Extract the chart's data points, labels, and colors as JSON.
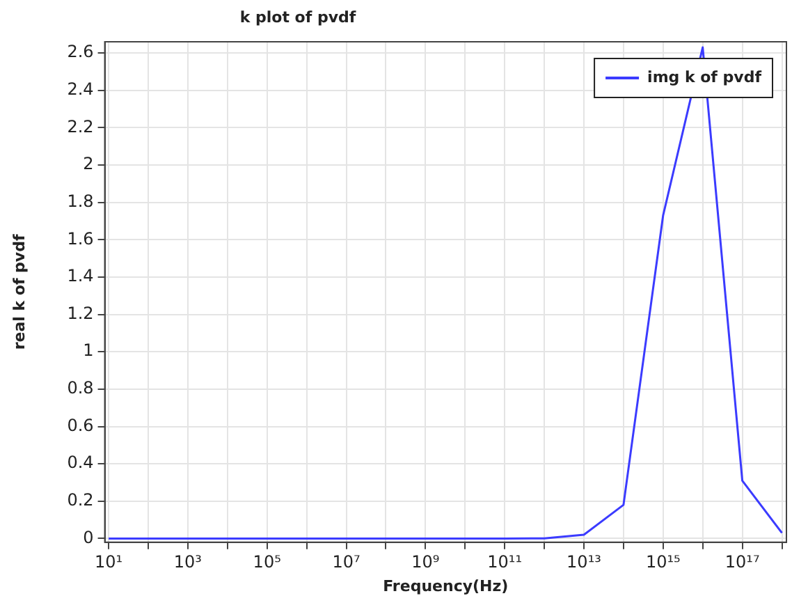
{
  "chart_data": {
    "type": "line",
    "title": "k plot of pvdf",
    "xlabel": "Frequency(Hz)",
    "ylabel": "real k of pvdf",
    "x": [
      10,
      100,
      1000,
      10000,
      100000,
      1000000,
      10000000,
      100000000,
      1000000000,
      10000000000,
      100000000000,
      1000000000000,
      10000000000000,
      100000000000000,
      1000000000000000,
      10000000000000000,
      100000000000000000,
      1000000000000000000
    ],
    "series": [
      {
        "name": "img k of pvdf",
        "color": "#3b3bff",
        "values": [
          0,
          0,
          0,
          0,
          0,
          0,
          0,
          0,
          0,
          0,
          0,
          0.001,
          0.02,
          0.18,
          1.73,
          2.63,
          0.31,
          0.03
        ]
      }
    ],
    "log": "x",
    "xlim": [
      8,
      1300000000000000000
    ],
    "ylim": [
      -0.02,
      2.66
    ],
    "xticks": [
      {
        "value": 10,
        "label": "10¹"
      },
      {
        "value": 100,
        "label": null
      },
      {
        "value": 1000,
        "label": "10³"
      },
      {
        "value": 10000,
        "label": null
      },
      {
        "value": 100000,
        "label": "10⁵"
      },
      {
        "value": 1000000,
        "label": null
      },
      {
        "value": 10000000,
        "label": "10⁷"
      },
      {
        "value": 100000000,
        "label": null
      },
      {
        "value": 1000000000,
        "label": "10⁹"
      },
      {
        "value": 10000000000,
        "label": null
      },
      {
        "value": 100000000000,
        "label": "10¹¹"
      },
      {
        "value": 1000000000000,
        "label": null
      },
      {
        "value": 10000000000000,
        "label": "10¹³"
      },
      {
        "value": 100000000000000,
        "label": null
      },
      {
        "value": 1000000000000000,
        "label": "10¹⁵"
      },
      {
        "value": 10000000000000000,
        "label": null
      },
      {
        "value": 100000000000000000,
        "label": "10¹⁷"
      },
      {
        "value": 1000000000000000000,
        "label": null
      }
    ],
    "yticks": [
      0,
      {
        "value": 0.2,
        "label": "0.2"
      },
      {
        "value": 0.4,
        "label": "0.4"
      },
      {
        "value": 0.6,
        "label": "0.6"
      },
      {
        "value": 0.8,
        "label": "0.8"
      },
      1,
      {
        "value": 1.2,
        "label": "1.2"
      },
      {
        "value": 1.4,
        "label": "1.4"
      },
      {
        "value": 1.6,
        "label": "1.6"
      },
      {
        "value": 1.8,
        "label": "1.8"
      },
      2,
      {
        "value": 2.2,
        "label": "2.2"
      },
      {
        "value": 2.4,
        "label": "2.4"
      },
      {
        "value": 2.6,
        "label": "2.6"
      }
    ],
    "grid": true,
    "legend": "top right",
    "marker": "none",
    "line_style": "solid"
  }
}
